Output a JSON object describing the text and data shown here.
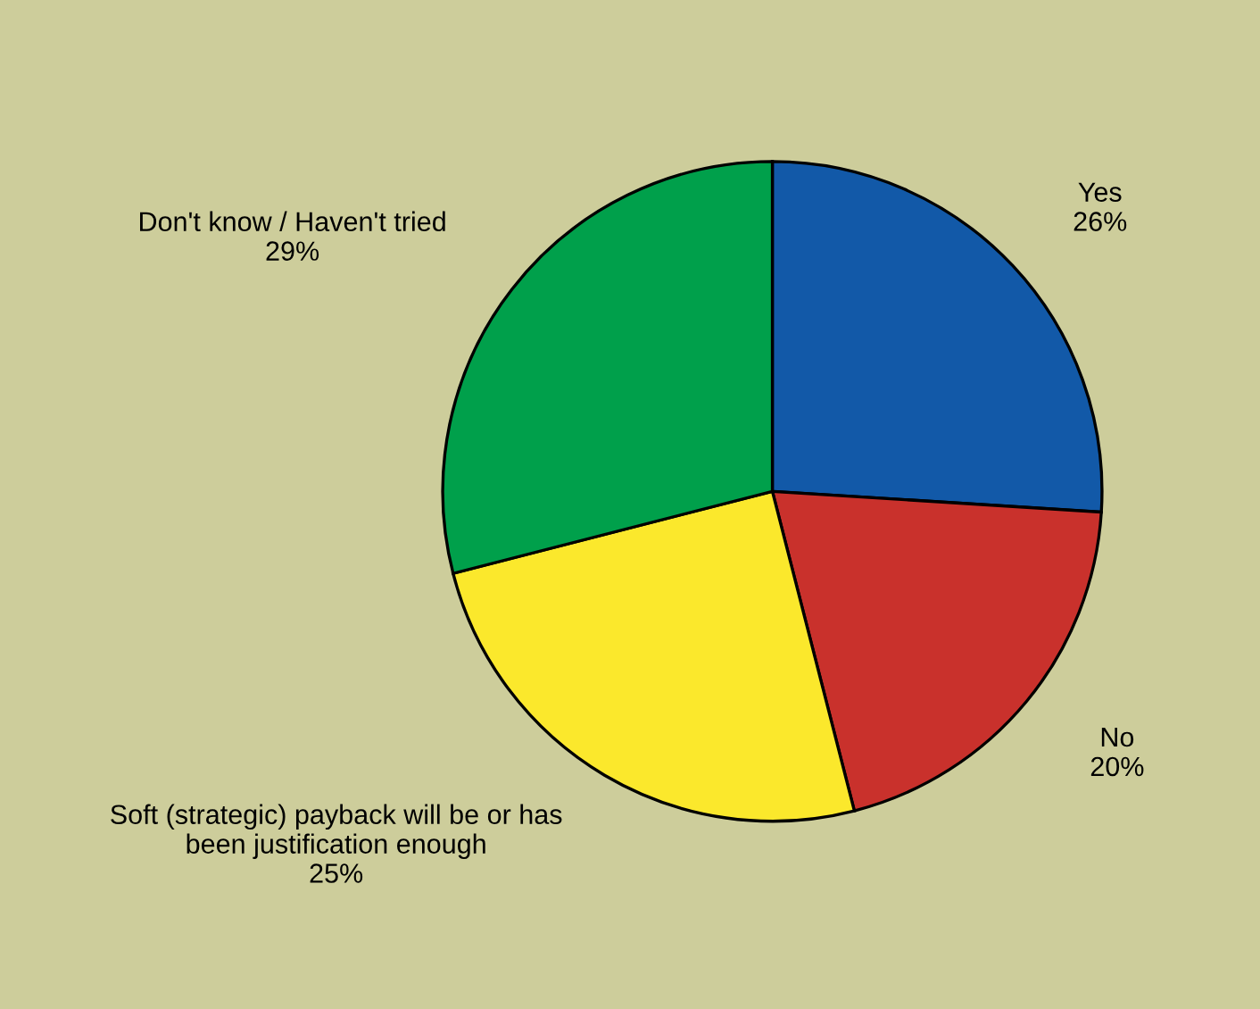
{
  "chart_data": {
    "type": "pie",
    "categories": [
      "Yes",
      "No",
      "Soft (strategic) payback will be or has\nbeen justification enough",
      "Don't know / Haven't tried"
    ],
    "values": [
      26,
      20,
      25,
      29
    ],
    "value_labels": [
      "26%",
      "20%",
      "25%",
      "29%"
    ],
    "colors": [
      "#1259a8",
      "#c9312c",
      "#fbe82c",
      "#00a04b"
    ],
    "legend": false
  }
}
